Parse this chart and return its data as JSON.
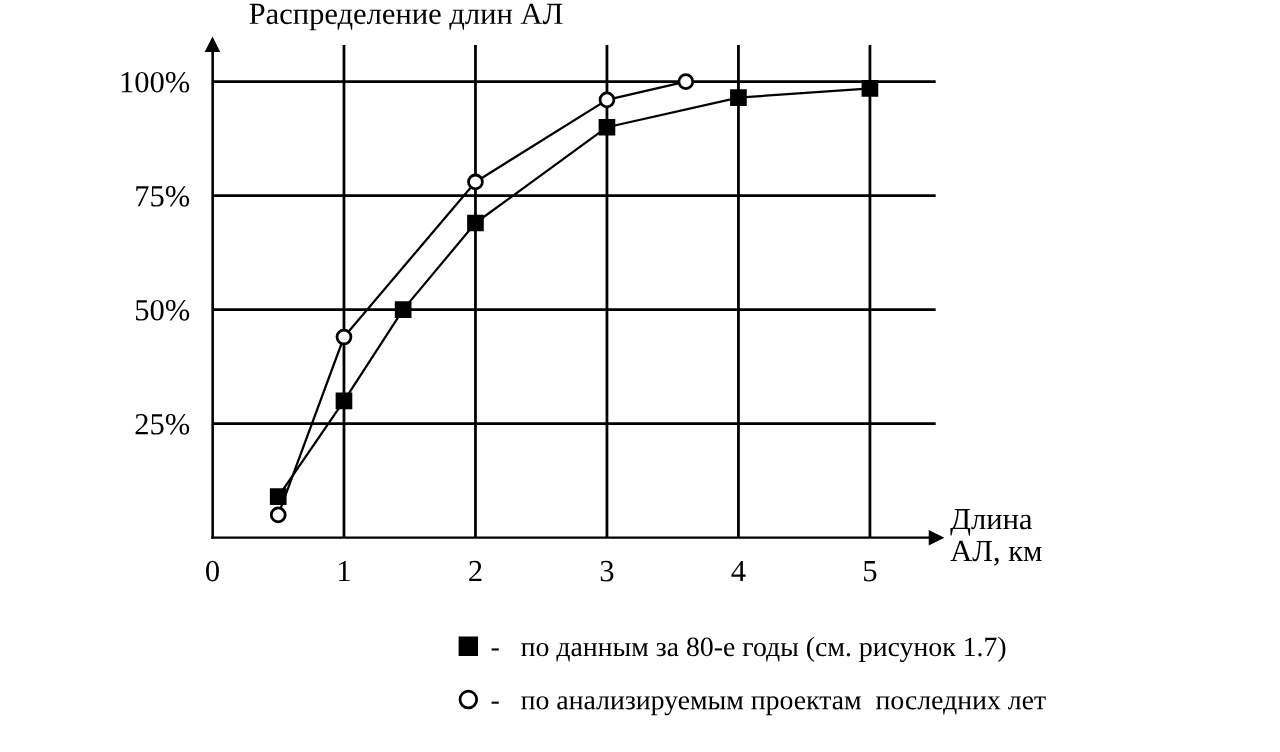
{
  "chart_data": {
    "type": "line",
    "ylabel": "Распределение длин АЛ",
    "xlabel": "Длина\nАЛ, км",
    "series": [
      {
        "name": "-   по данным за 80-е годы (см. рисунок 1.7)",
        "color": "#000000",
        "marker": "square",
        "x": [
          0.5,
          1,
          1.45,
          2,
          3,
          4,
          5
        ],
        "values": [
          9,
          30,
          50,
          69,
          90,
          96.5,
          98.5
        ]
      },
      {
        "name": "-   по анализируемым проектам  последних лет",
        "color": "#000000",
        "marker": "circle",
        "x": [
          0.5,
          1,
          2,
          3,
          3.6
        ],
        "values": [
          5,
          44,
          78,
          96,
          100
        ]
      }
    ],
    "xlim": [
      0,
      5.5
    ],
    "ylim": [
      0,
      108
    ],
    "xticks": [
      0,
      1,
      2,
      3,
      4,
      5
    ],
    "yticks": [
      {
        "value": 25,
        "label": "25%"
      },
      {
        "value": 50,
        "label": "50%"
      },
      {
        "value": 75,
        "label": "75%"
      },
      {
        "value": 100,
        "label": "100%"
      }
    ],
    "grid": true,
    "legend": "bottom"
  }
}
